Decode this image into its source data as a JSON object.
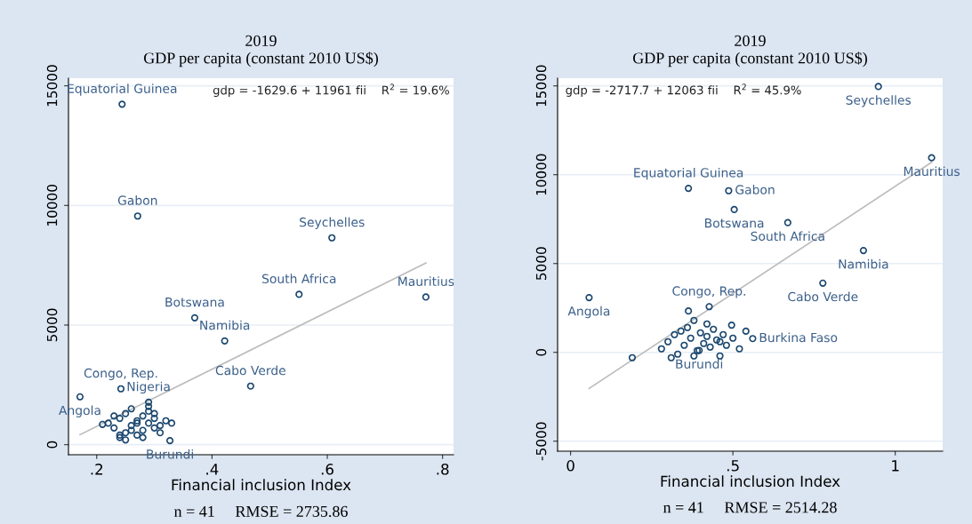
{
  "chart_data": [
    {
      "type": "scatter",
      "title": "2019",
      "subtitle": "GDP per capita (constant 2010 US$)",
      "xlabel": "Financial inclusion Index",
      "xlim": [
        0.151,
        0.819
      ],
      "ylim": [
        -420,
        15320
      ],
      "xticks": [
        {
          "value": 0.2,
          "label": ".2"
        },
        {
          "value": 0.4,
          "label": ".4"
        },
        {
          "value": 0.6,
          "label": ".6"
        },
        {
          "value": 0.8,
          "label": ".8"
        }
      ],
      "yticks": [
        0,
        5000,
        10000,
        15000
      ],
      "grid": "y",
      "legend": false,
      "marker": "circle",
      "series": [
        {
          "color": "#1a476f",
          "x": [
            0.244,
            0.271,
            0.608,
            0.551,
            0.771,
            0.37,
            0.422,
            0.467,
            0.242,
            0.171,
            0.29,
            0.327,
            0.22,
            0.23,
            0.24,
            0.24,
            0.25,
            0.25,
            0.26,
            0.26,
            0.27,
            0.27,
            0.28,
            0.28,
            0.29,
            0.29,
            0.3,
            0.3,
            0.31,
            0.31,
            0.32,
            0.23,
            0.25,
            0.27,
            0.29,
            0.21,
            0.26,
            0.28,
            0.3,
            0.24,
            0.33
          ],
          "values": [
            14230,
            9557,
            8647,
            6283,
            6171,
            5303,
            4338,
            2449,
            2337,
            2001,
            1777,
            168,
            900,
            700,
            300,
            1100,
            500,
            1300,
            800,
            1500,
            400,
            1000,
            600,
            1200,
            900,
            1400,
            700,
            1100,
            800,
            500,
            1000,
            1200,
            200,
            900,
            1600,
            850,
            600,
            300,
            1300,
            400,
            900
          ]
        },
        {
          "type": "line",
          "color": "#bcbcbc",
          "marker": "none",
          "x": [
            0.171,
            0.771
          ],
          "values": [
            416,
            7592
          ]
        }
      ],
      "annotations": [
        "gdp = -1629.6 + 11961 fii    R$^{2}$ = 19.6%",
        "n = 41     RMSE = 2735.86",
        {
          "text": "Equatorial Guinea",
          "x": 0.244,
          "y": 14230
        },
        {
          "text": "Gabon",
          "x": 0.271,
          "y": 9557
        },
        {
          "text": "Seychelles",
          "x": 0.608,
          "y": 8647
        },
        {
          "text": "South Africa",
          "x": 0.551,
          "y": 6283
        },
        {
          "text": "Mauritius",
          "x": 0.771,
          "y": 6171
        },
        {
          "text": "Botswana",
          "x": 0.37,
          "y": 5303
        },
        {
          "text": "Namibia",
          "x": 0.422,
          "y": 4338
        },
        {
          "text": "Cabo Verde",
          "x": 0.467,
          "y": 2449
        },
        {
          "text": "Congo, Rep.",
          "x": 0.242,
          "y": 2337
        },
        {
          "text": "Angola",
          "x": 0.171,
          "y": 2001
        },
        {
          "text": "Nigeria",
          "x": 0.29,
          "y": 1777
        },
        {
          "text": "Burundi",
          "x": 0.327,
          "y": 168
        }
      ]
    },
    {
      "type": "scatter",
      "title": "2019",
      "subtitle": "GDP per capita (constant 2010 US$)",
      "xlabel": "Financial inclusion Index",
      "xlim": [
        -0.04,
        1.146
      ],
      "ylim": [
        -5562,
        15435
      ],
      "xticks": [
        0,
        {
          "value": 0.5,
          "label": ".5"
        },
        1
      ],
      "yticks": [
        -5000,
        0,
        5000,
        10000,
        15000
      ],
      "grid": "y",
      "legend": false,
      "marker": "circle",
      "series": [
        {
          "color": "#1a476f",
          "x": [
            0.948,
            1.112,
            0.363,
            0.487,
            0.504,
            0.669,
            0.902,
            0.777,
            0.057,
            0.427,
            0.561,
            0.396,
            0.363,
            0.496,
            0.54,
            0.19,
            0.28,
            0.3,
            0.32,
            0.33,
            0.35,
            0.36,
            0.37,
            0.38,
            0.39,
            0.4,
            0.41,
            0.42,
            0.43,
            0.44,
            0.45,
            0.46,
            0.47,
            0.48,
            0.5,
            0.52,
            0.34,
            0.38,
            0.42,
            0.46,
            0.31
          ],
          "values": [
            14964,
            10953,
            9232,
            9099,
            8040,
            7302,
            5732,
            3897,
            3084,
            2573,
            776,
            110,
            2327,
            1532,
            1192,
            -300,
            200,
            600,
            1000,
            -100,
            400,
            1400,
            800,
            1800,
            100,
            1100,
            500,
            900,
            300,
            1300,
            700,
            -200,
            1000,
            400,
            800,
            200,
            1200,
            -200,
            1600,
            600,
            -300
          ]
        },
        {
          "type": "line",
          "color": "#bcbcbc",
          "marker": "none",
          "x": [
            0.057,
            1.112
          ],
          "values": [
            -2030,
            10697
          ]
        }
      ],
      "annotations": [
        "gdp = -2717.7 + 12063 fii    R$^{2}$ = 45.9%",
        "n = 41     RMSE = 2514.28",
        {
          "text": "Seychelles",
          "x": 0.948,
          "y": 14964
        },
        {
          "text": "Mauritius",
          "x": 1.112,
          "y": 10953
        },
        {
          "text": "Equatorial Guinea",
          "x": 0.363,
          "y": 9232
        },
        {
          "text": "Gabon",
          "x": 0.487,
          "y": 9099
        },
        {
          "text": "Botswana",
          "x": 0.504,
          "y": 8040
        },
        {
          "text": "South Africa",
          "x": 0.669,
          "y": 7302
        },
        {
          "text": "Namibia",
          "x": 0.902,
          "y": 5732
        },
        {
          "text": "Cabo Verde",
          "x": 0.777,
          "y": 3897
        },
        {
          "text": "Angola",
          "x": 0.057,
          "y": 3084
        },
        {
          "text": "Congo, Rep.",
          "x": 0.427,
          "y": 2573
        },
        {
          "text": "Burkina Faso",
          "x": 0.561,
          "y": 776
        },
        {
          "text": "Burundi",
          "x": 0.396,
          "y": 110
        }
      ]
    }
  ]
}
